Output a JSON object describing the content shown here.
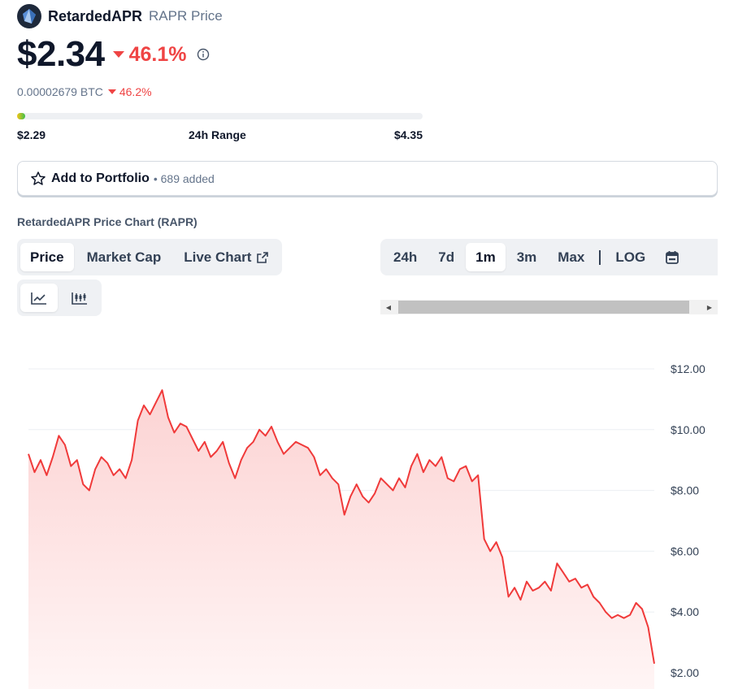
{
  "header": {
    "coin_name": "RetardedAPR",
    "coin_sub": "RAPR Price",
    "logo_icon": "coin-logo-icon"
  },
  "price": {
    "value": "$2.34",
    "change_pct": "46.1%",
    "direction": "down",
    "info_icon": "info-icon"
  },
  "btc": {
    "value": "0.00002679 BTC",
    "change_pct": "46.2%"
  },
  "range": {
    "low": "$2.29",
    "label": "24h Range",
    "high": "$4.35",
    "position_fraction": 0.02
  },
  "portfolio": {
    "label": "Add to Portfolio",
    "added": "• 689 added",
    "icon": "star-icon"
  },
  "chart_section_title": "RetardedAPR Price Chart (RAPR)",
  "view_tabs": [
    {
      "label": "Price",
      "active": true
    },
    {
      "label": "Market Cap",
      "active": false
    },
    {
      "label": "Live Chart",
      "active": false,
      "icon": "external-link-icon"
    }
  ],
  "chart_type_buttons": [
    {
      "icon": "line-chart-icon",
      "active": true
    },
    {
      "icon": "candlestick-icon",
      "active": false
    }
  ],
  "period_tabs": [
    {
      "label": "24h",
      "active": false
    },
    {
      "label": "7d",
      "active": false
    },
    {
      "label": "1m",
      "active": true
    },
    {
      "label": "3m",
      "active": false
    },
    {
      "label": "Max",
      "active": false
    }
  ],
  "log_label": "LOG",
  "calendar_icon": "calendar-icon",
  "colors": {
    "down": "#ef4444",
    "line": "#f03a3a",
    "area_top": "#fcd3d3",
    "range_start": "#f5c518",
    "range_end": "#3bbf4a"
  },
  "chart_data": {
    "type": "area",
    "title": "",
    "xlabel": "",
    "ylabel": "",
    "ylim": [
      1.8,
      12.2
    ],
    "y_ticks": [
      "$12.00",
      "$10.00",
      "$8.00",
      "$6.00",
      "$4.00",
      "$2.00"
    ],
    "y_tick_values": [
      12,
      10,
      8,
      6,
      4,
      2
    ],
    "grid": true,
    "legend": "none",
    "series": [
      {
        "values": [
          9.2,
          8.6,
          9.0,
          8.5,
          9.1,
          9.8,
          9.5,
          8.8,
          9.0,
          8.2,
          8.0,
          8.7,
          9.1,
          8.9,
          8.5,
          8.7,
          8.4,
          9.0,
          10.3,
          10.8,
          10.5,
          10.9,
          11.3,
          10.4,
          9.9,
          10.2,
          10.1,
          9.7,
          9.3,
          9.6,
          9.1,
          9.3,
          9.6,
          8.9,
          8.4,
          9.0,
          9.4,
          9.6,
          10.0,
          9.8,
          10.1,
          9.6,
          9.2,
          9.4,
          9.6,
          9.5,
          9.4,
          9.1,
          8.5,
          8.7,
          8.4,
          8.2,
          7.2,
          7.8,
          8.2,
          7.8,
          7.6,
          7.9,
          8.4,
          8.2,
          8.0,
          8.4,
          8.1,
          8.8,
          9.2,
          8.6,
          9.0,
          8.8,
          9.1,
          8.4,
          8.3,
          8.7,
          8.8,
          8.3,
          8.5,
          6.4,
          6.0,
          6.3,
          5.8,
          4.5,
          4.8,
          4.4,
          5.0,
          4.7,
          4.8,
          5.0,
          4.7,
          5.6,
          5.3,
          5.0,
          5.1,
          4.8,
          4.9,
          4.5,
          4.3,
          4.0,
          3.8,
          3.9,
          3.8,
          3.9,
          4.3,
          4.1,
          3.5,
          2.3
        ]
      }
    ]
  }
}
